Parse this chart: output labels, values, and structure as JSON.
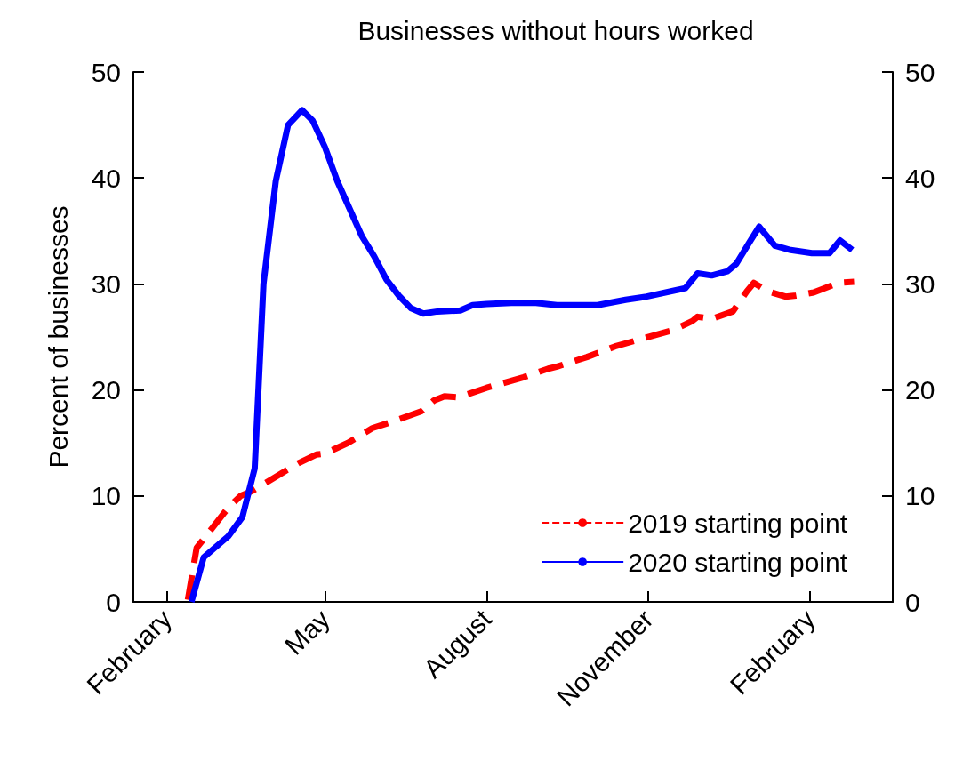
{
  "chart_data": {
    "type": "line",
    "title": "Businesses without hours worked",
    "ylabel": "Percent of businesses",
    "xlim": [
      "2020-01-13",
      "2021-03-20"
    ],
    "xticks": [
      {
        "value": "2020-02-01",
        "label": "February"
      },
      {
        "value": "2020-05-01",
        "label": "May"
      },
      {
        "value": "2020-08-01",
        "label": "August"
      },
      {
        "value": "2020-11-01",
        "label": "November"
      },
      {
        "value": "2021-02-01",
        "label": "February"
      }
    ],
    "ylim": [
      0,
      50
    ],
    "yticks": [
      0,
      10,
      20,
      30,
      40,
      50
    ],
    "y2lim": [
      0,
      50
    ],
    "y2ticks": [
      0,
      10,
      20,
      30,
      40,
      50
    ],
    "grid": false,
    "legend": "bottom right",
    "marker": "none",
    "series": [
      {
        "name": "2019 starting point",
        "color": "#ff0000",
        "line_style": "dashed",
        "x": [
          "2020-02-13",
          "2020-02-18",
          "2020-02-27",
          "2020-03-07",
          "2020-03-14",
          "2020-03-21",
          "2020-04-02",
          "2020-04-16",
          "2020-04-26",
          "2020-05-01",
          "2020-05-14",
          "2020-05-28",
          "2020-06-10",
          "2020-06-25",
          "2020-07-02",
          "2020-07-08",
          "2020-07-16",
          "2020-08-01",
          "2020-08-22",
          "2020-09-05",
          "2020-09-10",
          "2020-09-27",
          "2020-10-13",
          "2020-10-30",
          "2020-11-16",
          "2020-11-26",
          "2020-11-29",
          "2020-12-07",
          "2020-12-19",
          "2020-12-27",
          "2020-12-31",
          "2021-01-08",
          "2021-01-18",
          "2021-01-24",
          "2021-02-03",
          "2021-02-17",
          "2021-02-26"
        ],
        "values": [
          0.2,
          5.1,
          7.0,
          8.9,
          10.0,
          10.5,
          11.7,
          13.1,
          13.9,
          14.0,
          15.0,
          16.4,
          17.1,
          18.0,
          19.0,
          19.4,
          19.3,
          20.2,
          21.2,
          22.0,
          22.2,
          23.1,
          24.1,
          24.9,
          25.7,
          26.5,
          26.9,
          26.7,
          27.4,
          29.3,
          30.1,
          29.3,
          28.8,
          28.9,
          29.2,
          30.1,
          30.2
        ]
      },
      {
        "name": "2020 starting point",
        "color": "#0000ff",
        "line_style": "solid",
        "x": [
          "2020-02-15",
          "2020-02-22",
          "2020-03-07",
          "2020-03-15",
          "2020-03-22",
          "2020-03-27",
          "2020-04-03",
          "2020-04-10",
          "2020-04-18",
          "2020-04-24",
          "2020-05-01",
          "2020-05-08",
          "2020-05-15",
          "2020-05-22",
          "2020-05-29",
          "2020-06-05",
          "2020-06-12",
          "2020-06-19",
          "2020-06-26",
          "2020-07-04",
          "2020-07-17",
          "2020-07-24",
          "2020-08-01",
          "2020-08-15",
          "2020-08-29",
          "2020-09-10",
          "2020-10-03",
          "2020-10-19",
          "2020-10-31",
          "2020-11-22",
          "2020-11-29",
          "2020-12-07",
          "2020-12-16",
          "2020-12-21",
          "2020-12-28",
          "2021-01-03",
          "2021-01-12",
          "2021-01-21",
          "2021-02-02",
          "2021-02-12",
          "2021-02-18",
          "2021-02-25"
        ],
        "values": [
          0,
          4.2,
          6.2,
          8.0,
          12.6,
          30,
          39.7,
          45,
          46.4,
          45.4,
          42.9,
          39.7,
          37.1,
          34.5,
          32.6,
          30.4,
          28.9,
          27.7,
          27.2,
          27.4,
          27.5,
          28.0,
          28.1,
          28.2,
          28.2,
          28.0,
          28.0,
          28.5,
          28.8,
          29.6,
          31.0,
          30.8,
          31.2,
          31.9,
          33.8,
          35.4,
          33.6,
          33.2,
          32.9,
          32.9,
          34.1,
          33.2
        ]
      }
    ]
  }
}
